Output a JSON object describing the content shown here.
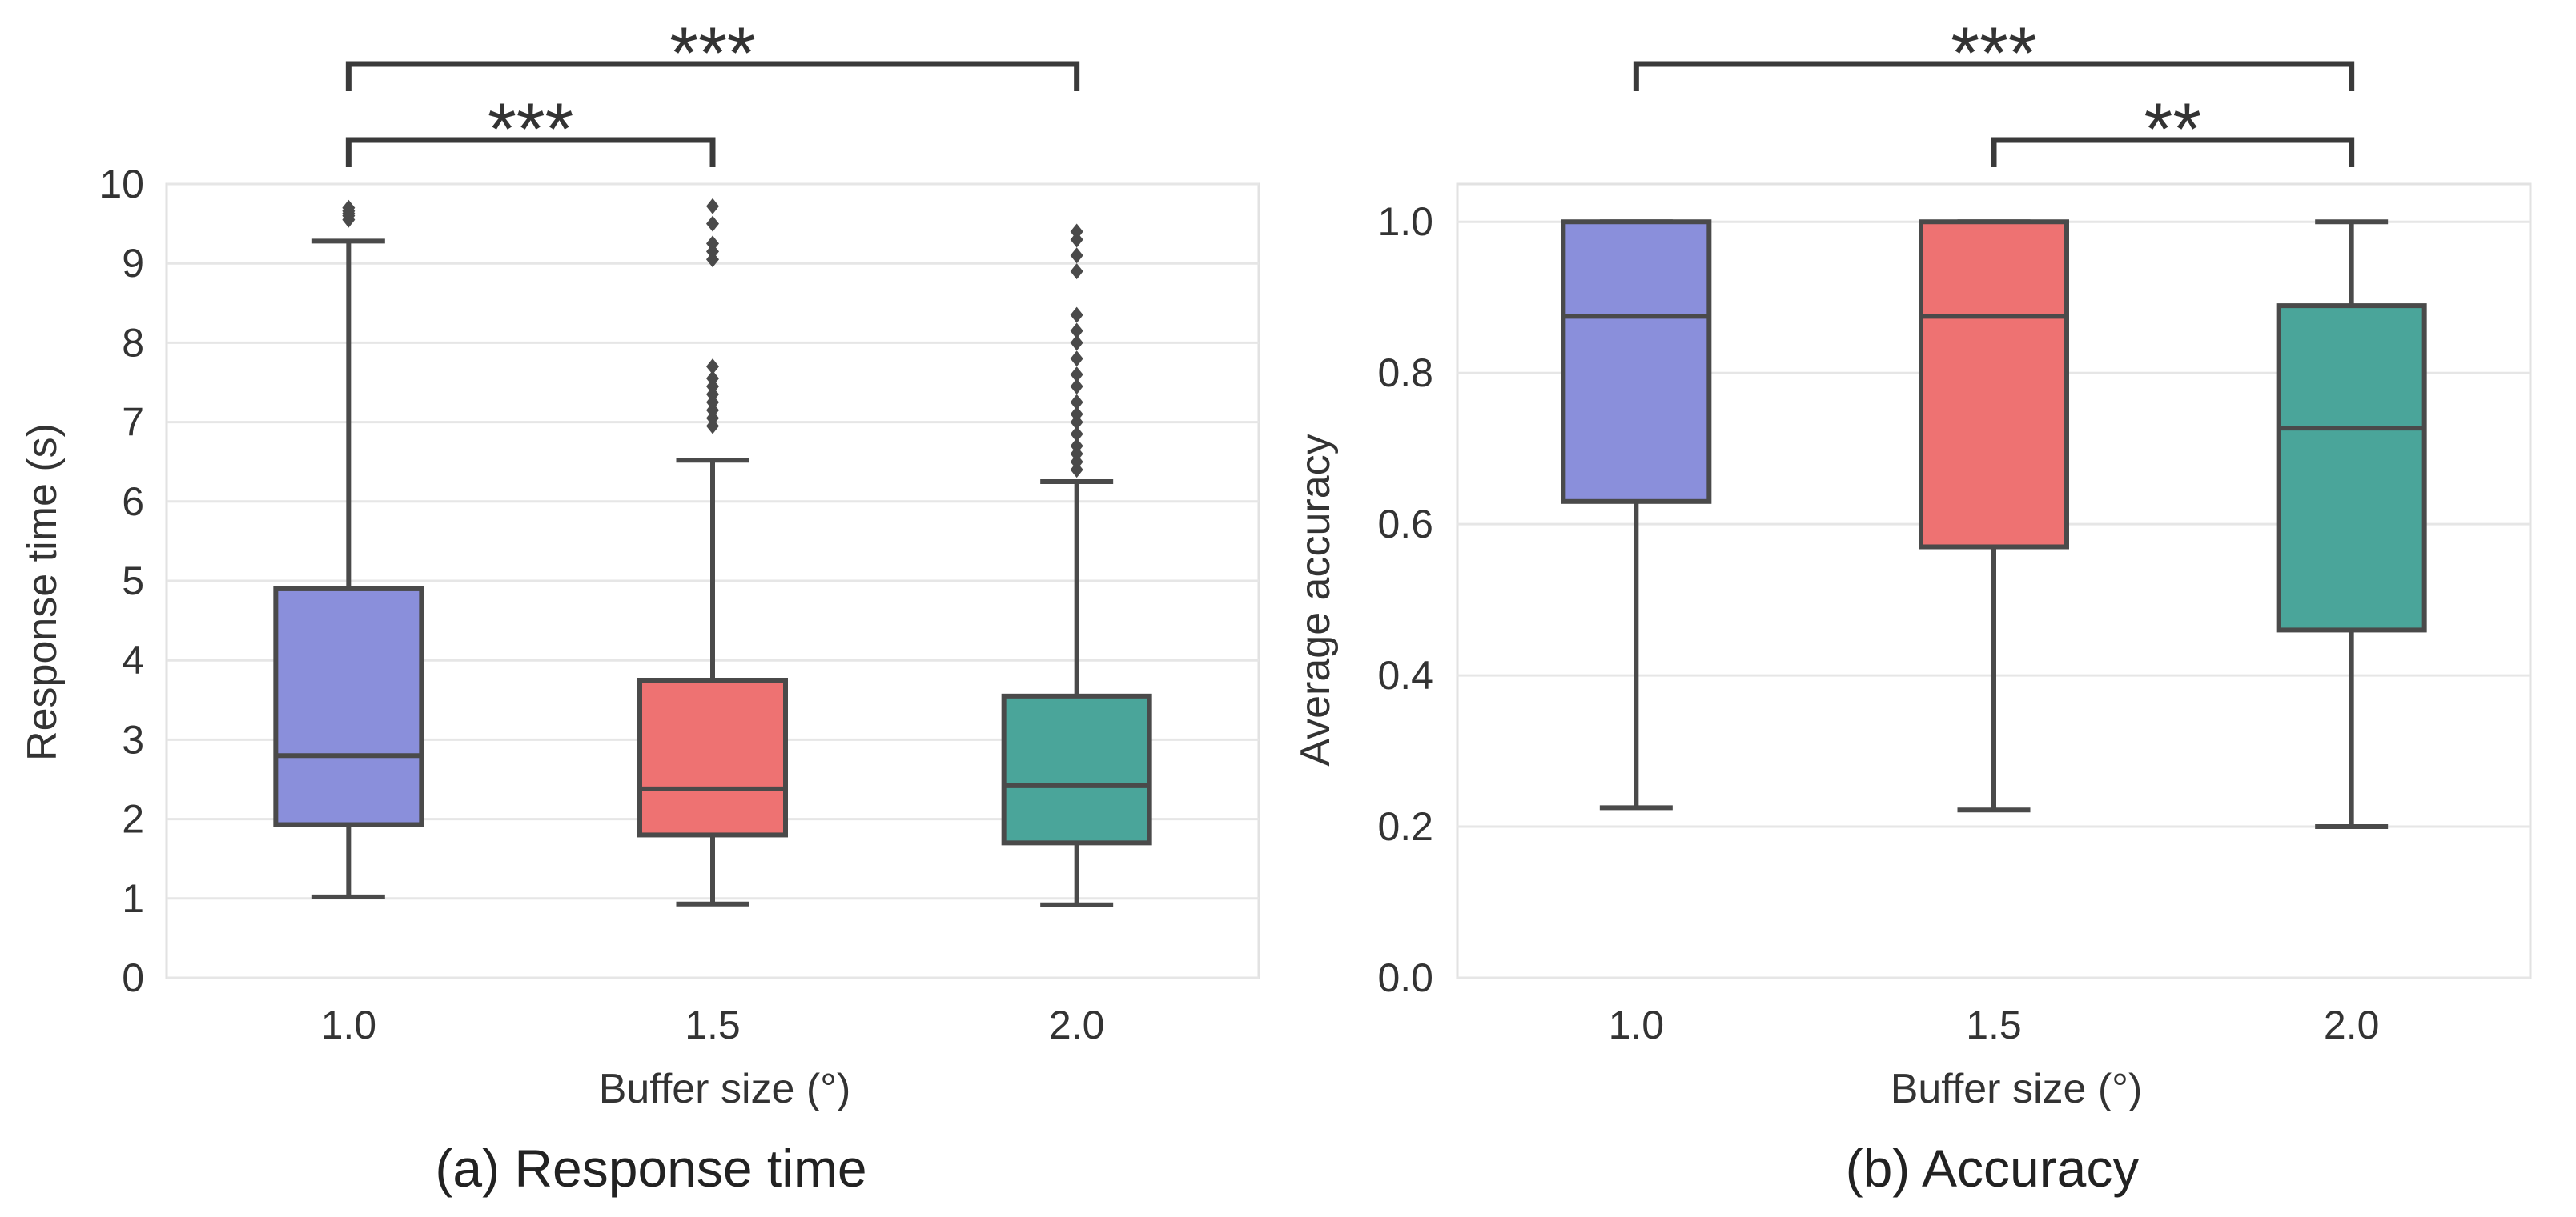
{
  "chart_data": [
    {
      "type": "box",
      "caption": "(a) Response time",
      "xlabel": "Buffer size (°)",
      "ylabel": "Response time (s)",
      "ylim": [
        0,
        10
      ],
      "yticks": [
        "0",
        "1",
        "2",
        "3",
        "4",
        "5",
        "6",
        "7",
        "8",
        "9",
        "10"
      ],
      "grid": true,
      "categories": [
        "1.0",
        "1.5",
        "2.0"
      ],
      "boxes": [
        {
          "category": "1.0",
          "whisker_low": 1.02,
          "q1": 1.93,
          "median": 2.8,
          "q3": 4.9,
          "whisker_high": 9.28,
          "color": "#8a8fdb",
          "outliers": [
            9.55,
            9.6,
            9.63,
            9.66,
            9.7
          ]
        },
        {
          "category": "1.5",
          "whisker_low": 0.93,
          "q1": 1.8,
          "median": 2.38,
          "q3": 3.75,
          "whisker_high": 6.52,
          "color": "#ee7272",
          "outliers": [
            6.95,
            7.05,
            7.15,
            7.25,
            7.35,
            7.45,
            7.55,
            7.7,
            9.05,
            9.15,
            9.25,
            9.5,
            9.72
          ]
        },
        {
          "category": "2.0",
          "whisker_low": 0.92,
          "q1": 1.7,
          "median": 2.42,
          "q3": 3.55,
          "whisker_high": 6.25,
          "color": "#4aa59a",
          "outliers": [
            6.4,
            6.5,
            6.6,
            6.7,
            6.85,
            7.0,
            7.1,
            7.25,
            7.45,
            7.6,
            7.8,
            8.0,
            8.15,
            8.35,
            8.9,
            9.1,
            9.3,
            9.4
          ]
        }
      ],
      "significance": [
        {
          "from": 0,
          "to": 1,
          "label": "***",
          "level": 1
        },
        {
          "from": 0,
          "to": 2,
          "label": "***",
          "level": 2
        }
      ]
    },
    {
      "type": "box",
      "caption": "(b) Accuracy",
      "xlabel": "Buffer size (°)",
      "ylabel": "Average accuracy",
      "ylim": [
        0,
        1.05
      ],
      "yticks": [
        "0.0",
        "0.2",
        "0.4",
        "0.6",
        "0.8",
        "1.0"
      ],
      "grid": true,
      "categories": [
        "1.0",
        "1.5",
        "2.0"
      ],
      "boxes": [
        {
          "category": "1.0",
          "whisker_low": 0.225,
          "q1": 0.63,
          "median": 0.875,
          "q3": 1.0,
          "whisker_high": 1.0,
          "color": "#8a8fdb",
          "outliers": []
        },
        {
          "category": "1.5",
          "whisker_low": 0.222,
          "q1": 0.57,
          "median": 0.875,
          "q3": 1.0,
          "whisker_high": 1.0,
          "color": "#ee7272",
          "outliers": []
        },
        {
          "category": "2.0",
          "whisker_low": 0.2,
          "q1": 0.46,
          "median": 0.727,
          "q3": 0.889,
          "whisker_high": 1.0,
          "color": "#4aa59a",
          "outliers": []
        }
      ],
      "significance": [
        {
          "from": 1,
          "to": 2,
          "label": "**",
          "level": 1
        },
        {
          "from": 0,
          "to": 2,
          "label": "***",
          "level": 2
        }
      ]
    }
  ]
}
